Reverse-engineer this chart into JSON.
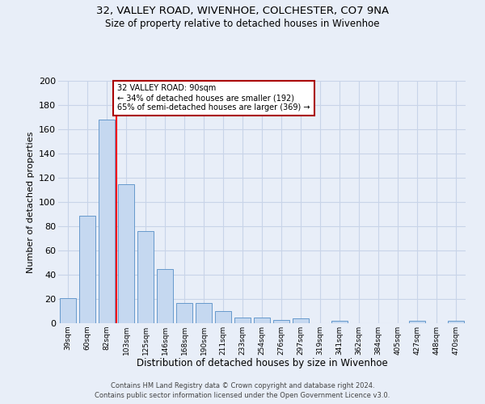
{
  "title1": "32, VALLEY ROAD, WIVENHOE, COLCHESTER, CO7 9NA",
  "title2": "Size of property relative to detached houses in Wivenhoe",
  "xlabel": "Distribution of detached houses by size in Wivenhoe",
  "ylabel": "Number of detached properties",
  "categories": [
    "39sqm",
    "60sqm",
    "82sqm",
    "103sqm",
    "125sqm",
    "146sqm",
    "168sqm",
    "190sqm",
    "211sqm",
    "233sqm",
    "254sqm",
    "276sqm",
    "297sqm",
    "319sqm",
    "341sqm",
    "362sqm",
    "384sqm",
    "405sqm",
    "427sqm",
    "448sqm",
    "470sqm"
  ],
  "values": [
    21,
    89,
    168,
    115,
    76,
    45,
    17,
    17,
    10,
    5,
    5,
    3,
    4,
    0,
    2,
    0,
    0,
    0,
    2,
    0,
    2
  ],
  "bar_color": "#c5d8f0",
  "bar_edge_color": "#6699cc",
  "vline_x_idx": 2,
  "vline_color": "red",
  "annotation_text": "32 VALLEY ROAD: 90sqm\n← 34% of detached houses are smaller (192)\n65% of semi-detached houses are larger (369) →",
  "annotation_box_color": "white",
  "annotation_box_edge_color": "#aa0000",
  "ylim": [
    0,
    200
  ],
  "yticks": [
    0,
    20,
    40,
    60,
    80,
    100,
    120,
    140,
    160,
    180,
    200
  ],
  "footer1": "Contains HM Land Registry data © Crown copyright and database right 2024.",
  "footer2": "Contains public sector information licensed under the Open Government Licence v3.0.",
  "background_color": "#e8eef8",
  "grid_color": "#c8d4e8"
}
